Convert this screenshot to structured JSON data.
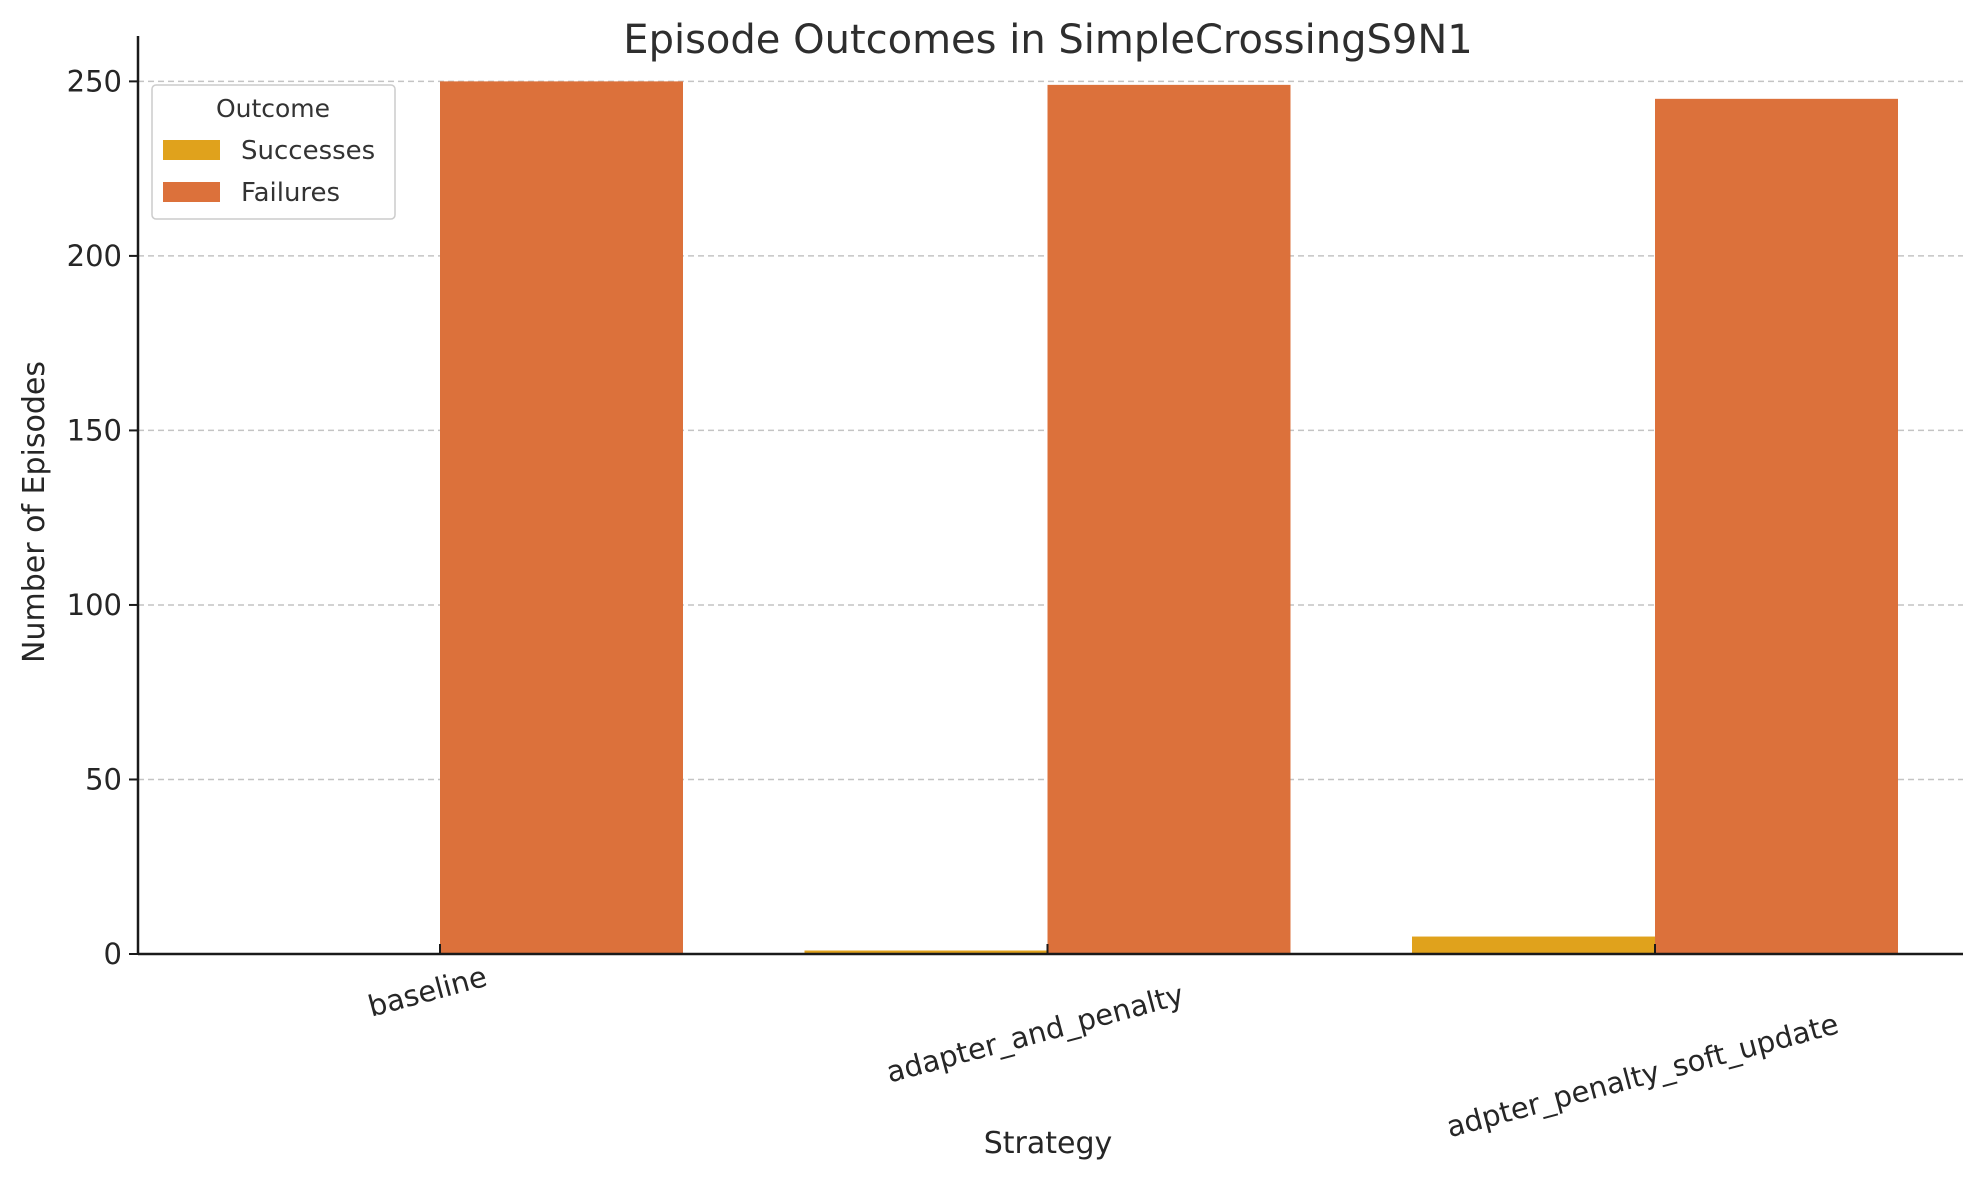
{
  "chart_data": {
    "type": "bar",
    "title": "Episode Outcomes in SimpleCrossingS9N1",
    "xlabel": "Strategy",
    "ylabel": "Number of Episodes",
    "categories": [
      "baseline",
      "adapter_and_penalty",
      "adpter_penalty_soft_update"
    ],
    "series": [
      {
        "name": "Successes",
        "values": [
          0,
          1,
          5
        ],
        "color": "#e0a21c"
      },
      {
        "name": "Failures",
        "values": [
          250,
          249,
          245
        ],
        "color": "#dc713b"
      }
    ],
    "ylim": [
      0,
      263
    ],
    "yticks": [
      0,
      50,
      100,
      150,
      200,
      250
    ],
    "grid": "y, dashed",
    "legend": {
      "title": "Outcome",
      "placement": "top-left"
    }
  }
}
